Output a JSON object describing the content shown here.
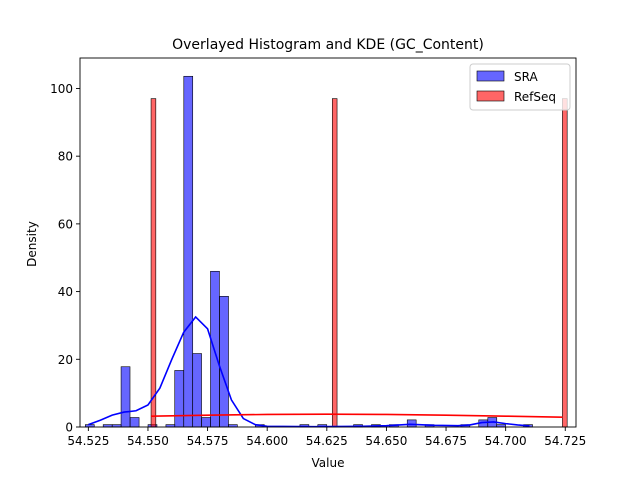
{
  "chart_data": {
    "type": "histogram",
    "title": "Overlayed Histogram and KDE (GC_Content)",
    "xlabel": "Value",
    "ylabel": "Density",
    "xlim": [
      54.5215,
      54.7295
    ],
    "ylim": [
      0,
      109
    ],
    "xticks": [
      54.525,
      54.55,
      54.575,
      54.6,
      54.625,
      54.65,
      54.675,
      54.7,
      54.725
    ],
    "xtick_labels": [
      "54.525",
      "54.550",
      "54.575",
      "54.600",
      "54.625",
      "54.650",
      "54.675",
      "54.700",
      "54.725"
    ],
    "yticks": [
      0,
      20,
      40,
      60,
      80,
      100
    ],
    "ytick_labels": [
      "0",
      "20",
      "40",
      "60",
      "80",
      "100"
    ],
    "grid": false,
    "legend_position": "top-right",
    "series": [
      {
        "name": "SRA",
        "color": "#0000ff",
        "bin_width": 0.00375,
        "bins": [
          {
            "x": 54.5256,
            "y": 0.7
          },
          {
            "x": 54.5331,
            "y": 0.7
          },
          {
            "x": 54.5369,
            "y": 0.7
          },
          {
            "x": 54.5406,
            "y": 17.8
          },
          {
            "x": 54.5444,
            "y": 2.8
          },
          {
            "x": 54.5519,
            "y": 0.7
          },
          {
            "x": 54.5594,
            "y": 0.7
          },
          {
            "x": 54.5631,
            "y": 16.7
          },
          {
            "x": 54.5669,
            "y": 103.6
          },
          {
            "x": 54.5706,
            "y": 21.7
          },
          {
            "x": 54.5744,
            "y": 2.8
          },
          {
            "x": 54.5781,
            "y": 46.0
          },
          {
            "x": 54.5819,
            "y": 38.6
          },
          {
            "x": 54.5856,
            "y": 0.7
          },
          {
            "x": 54.5969,
            "y": 0.7
          },
          {
            "x": 54.6156,
            "y": 0.7
          },
          {
            "x": 54.6231,
            "y": 0.7
          },
          {
            "x": 54.6381,
            "y": 0.7
          },
          {
            "x": 54.6456,
            "y": 0.7
          },
          {
            "x": 54.6531,
            "y": 0.7
          },
          {
            "x": 54.6606,
            "y": 2.1
          },
          {
            "x": 54.6681,
            "y": 0.7
          },
          {
            "x": 54.6831,
            "y": 0.7
          },
          {
            "x": 54.6906,
            "y": 2.1
          },
          {
            "x": 54.6944,
            "y": 2.8
          },
          {
            "x": 54.6981,
            "y": 0.7
          },
          {
            "x": 54.7094,
            "y": 0.7
          }
        ],
        "kde": [
          [
            54.525,
            0.7
          ],
          [
            54.53,
            2.0
          ],
          [
            54.535,
            3.5
          ],
          [
            54.54,
            4.4
          ],
          [
            54.545,
            4.8
          ],
          [
            54.55,
            6.5
          ],
          [
            54.555,
            11.5
          ],
          [
            54.56,
            20.0
          ],
          [
            54.565,
            28.0
          ],
          [
            54.57,
            32.5
          ],
          [
            54.575,
            29.0
          ],
          [
            54.58,
            18.0
          ],
          [
            54.585,
            8.0
          ],
          [
            54.59,
            2.5
          ],
          [
            54.595,
            0.7
          ],
          [
            54.6,
            0.2
          ],
          [
            54.62,
            0.1
          ],
          [
            54.64,
            0.2
          ],
          [
            54.65,
            0.4
          ],
          [
            54.66,
            0.8
          ],
          [
            54.67,
            0.5
          ],
          [
            54.68,
            0.4
          ],
          [
            54.685,
            0.6
          ],
          [
            54.69,
            1.3
          ],
          [
            54.695,
            1.5
          ],
          [
            54.7,
            1.0
          ],
          [
            54.705,
            0.6
          ],
          [
            54.71,
            0.3
          ]
        ]
      },
      {
        "name": "RefSeq",
        "color": "#ff0000",
        "bin_width": 0.002,
        "bins": [
          {
            "x": 54.5523,
            "y": 97.0
          },
          {
            "x": 54.6283,
            "y": 97.0
          },
          {
            "x": 54.7248,
            "y": 97.0
          }
        ],
        "kde": [
          [
            54.5513,
            3.2
          ],
          [
            54.575,
            3.5
          ],
          [
            54.6,
            3.7
          ],
          [
            54.625,
            3.8
          ],
          [
            54.65,
            3.7
          ],
          [
            54.675,
            3.5
          ],
          [
            54.7,
            3.2
          ],
          [
            54.7238,
            2.9
          ]
        ]
      }
    ]
  }
}
